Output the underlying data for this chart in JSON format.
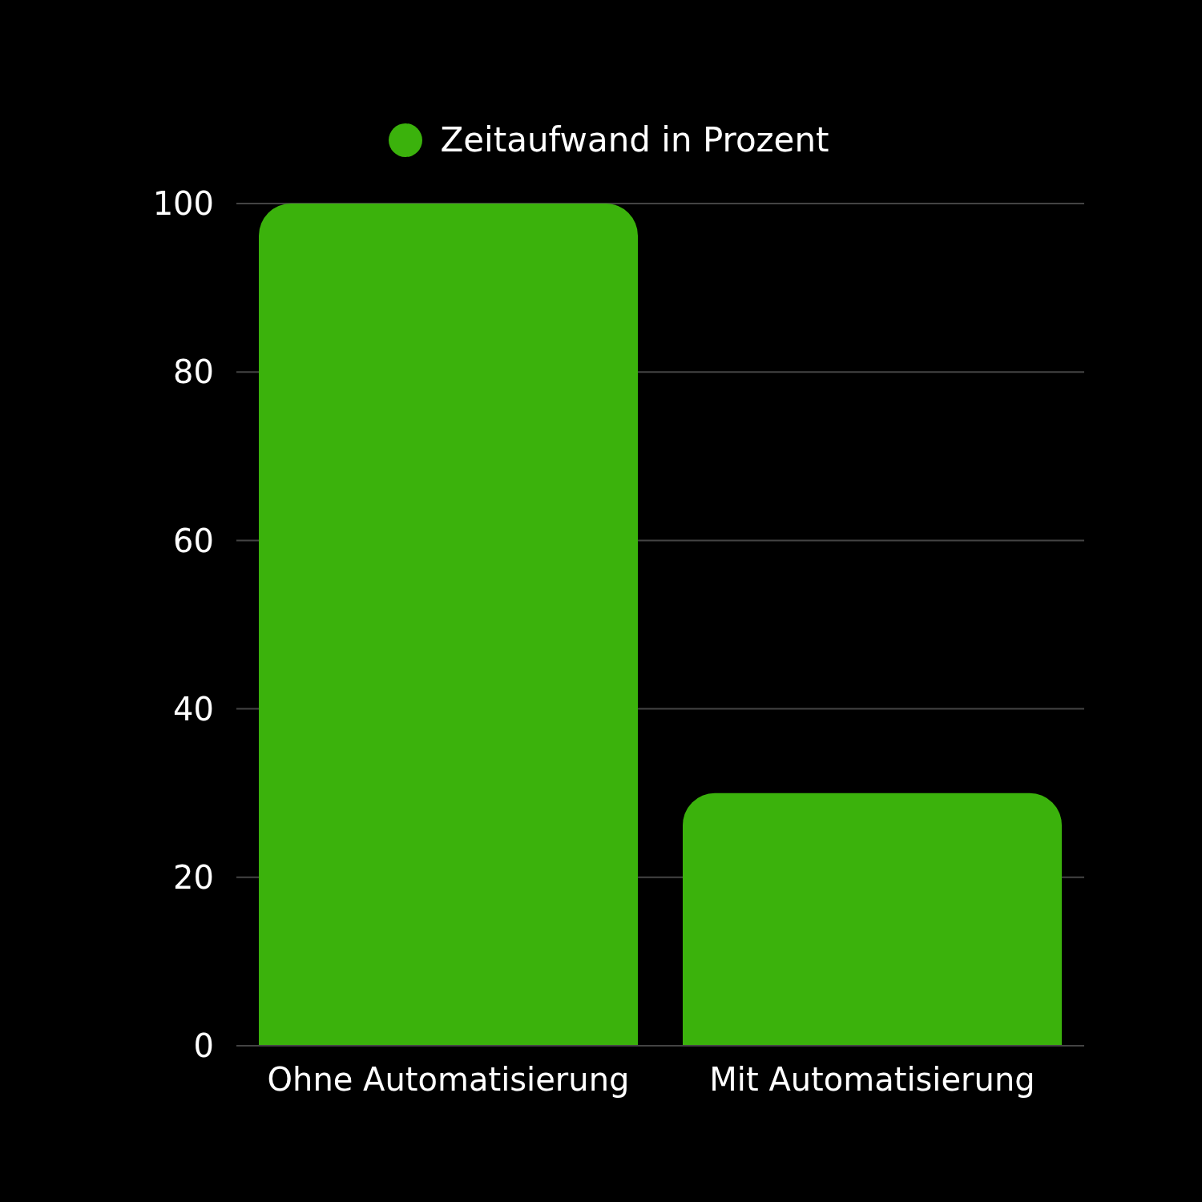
{
  "chart_data": {
    "type": "bar",
    "categories": [
      "Ohne Automatisierung",
      "Mit Automatisierung"
    ],
    "series": [
      {
        "name": "Zeitaufwand in Prozent",
        "color": "#3bb20c",
        "values": [
          100,
          30
        ]
      }
    ],
    "ylim": [
      0,
      100
    ],
    "yticks": [
      0,
      20,
      40,
      60,
      80,
      100
    ],
    "grid": "y",
    "legend": "top",
    "marker": "circle"
  }
}
